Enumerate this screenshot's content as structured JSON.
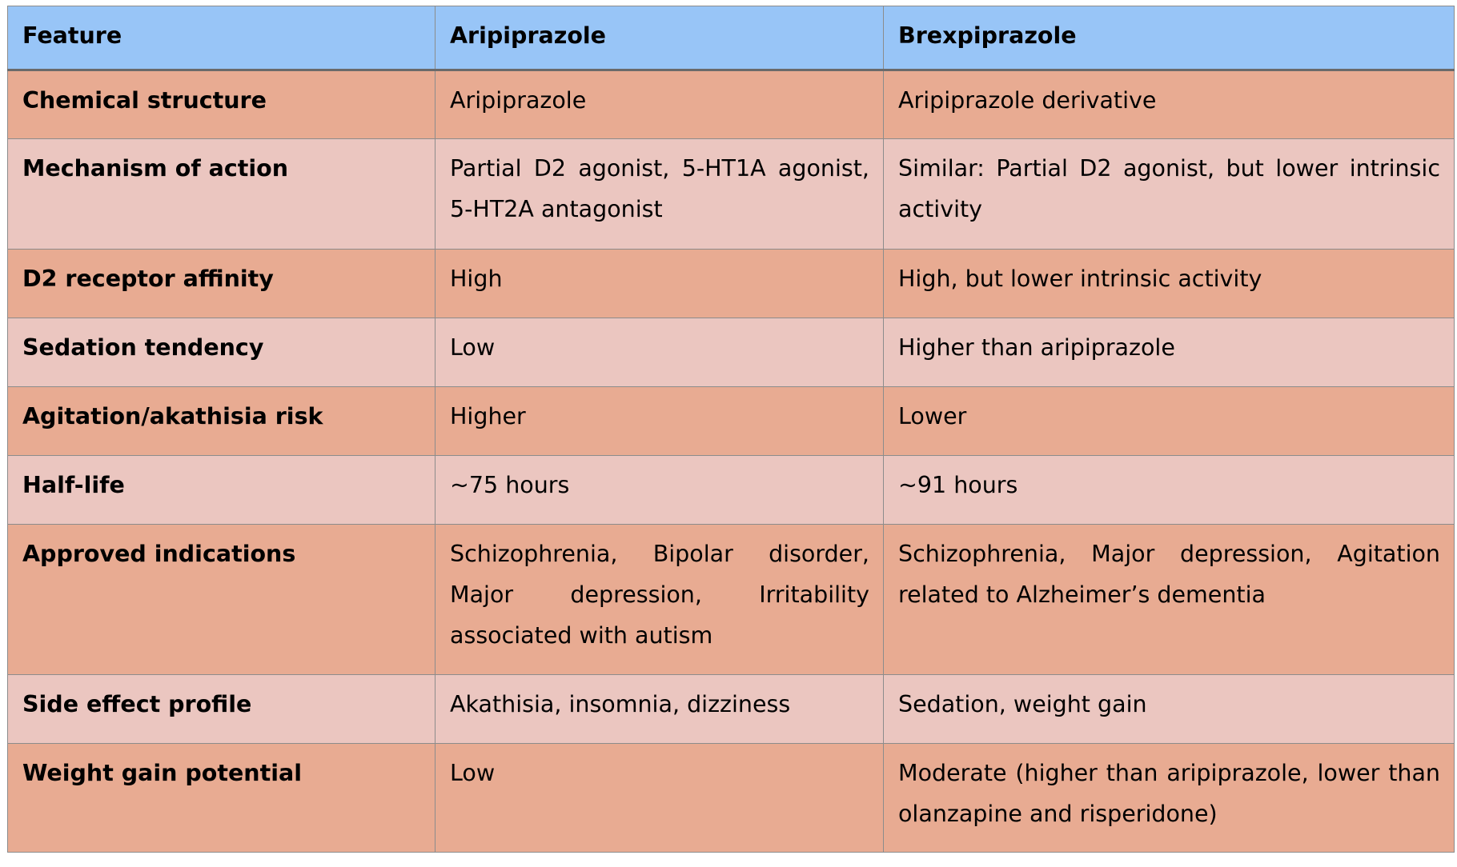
{
  "header": {
    "feature": "Feature",
    "aripiprazole": "Aripiprazole",
    "brexpiprazole": "Brexpiprazole"
  },
  "rows": [
    {
      "feature": "Chemical structure",
      "aripiprazole": "Aripiprazole",
      "brexpiprazole": "Aripiprazole derivative"
    },
    {
      "feature": "Mechanism of action",
      "aripiprazole": "Partial D2 agonist, 5-HT1A agonist, 5-HT2A antagonist",
      "brexpiprazole": "Similar: Partial D2 agonist, but lower intrinsic activity"
    },
    {
      "feature": "D2 receptor affinity",
      "aripiprazole": "High",
      "brexpiprazole": "High, but lower intrinsic activity"
    },
    {
      "feature": "Sedation tendency",
      "aripiprazole": "Low",
      "brexpiprazole": "Higher than aripiprazole"
    },
    {
      "feature": "Agitation/akathisia risk",
      "aripiprazole": "Higher",
      "brexpiprazole": "Lower"
    },
    {
      "feature": "Half-life",
      "aripiprazole": "~75 hours",
      "brexpiprazole": "~91 hours"
    },
    {
      "feature": "Approved indications",
      "aripiprazole": "Schizophrenia, Bipolar disorder, Major depression, Irritability associated with autism",
      "brexpiprazole": "Schizophrenia, Major depression, Agitation related to Alzheimer’s dementia"
    },
    {
      "feature": "Side effect profile",
      "aripiprazole": "Akathisia, insomnia, dizziness",
      "brexpiprazole": "Sedation, weight gain"
    },
    {
      "feature": "Weight gain potential",
      "aripiprazole": "Low",
      "brexpiprazole": "Moderate (higher than aripiprazole, lower than olanzapine and risperidone)"
    }
  ],
  "colors": {
    "header_bg": "#98c5f7",
    "row_dark_bg": "#e8ab92",
    "row_light_bg": "#ebc6c0",
    "border": "#8c8c8c"
  }
}
